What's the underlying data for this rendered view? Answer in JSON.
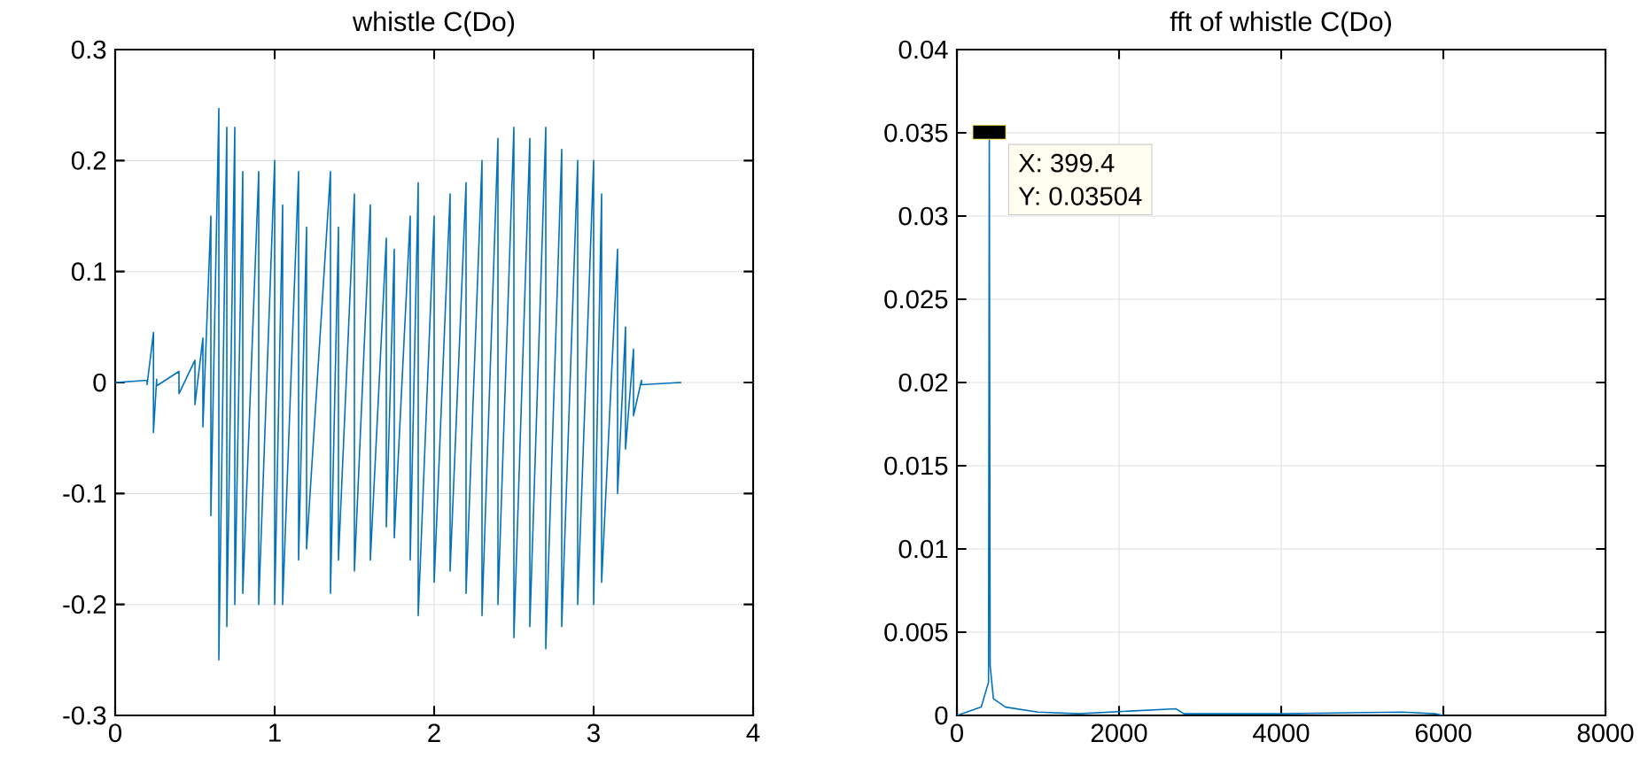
{
  "chart_data": [
    {
      "type": "line",
      "title": "whistle C(Do)",
      "color": "#0072bd",
      "grid": true,
      "xlim": [
        0,
        4
      ],
      "ylim": [
        -0.3,
        0.3
      ],
      "xticks": [
        0,
        1,
        2,
        3,
        4
      ],
      "yticks": [
        -0.3,
        -0.2,
        -0.1,
        0,
        0.1,
        0.2,
        0.3
      ],
      "x": [
        0,
        0.2,
        0.2,
        0.24,
        0.24,
        0.26,
        0.26,
        0.4,
        0.4,
        0.5,
        0.5,
        0.55,
        0.55,
        0.6,
        0.6,
        0.65,
        0.65,
        0.7,
        0.7,
        0.75,
        0.75,
        0.8,
        0.8,
        0.9,
        0.9,
        1.0,
        1.0,
        1.05,
        1.05,
        1.15,
        1.15,
        1.2,
        1.2,
        1.35,
        1.35,
        1.4,
        1.4,
        1.5,
        1.5,
        1.6,
        1.6,
        1.7,
        1.7,
        1.75,
        1.75,
        1.85,
        1.85,
        1.9,
        1.9,
        2.0,
        2.0,
        2.1,
        2.1,
        2.2,
        2.2,
        2.3,
        2.3,
        2.4,
        2.4,
        2.5,
        2.5,
        2.6,
        2.6,
        2.7,
        2.7,
        2.8,
        2.8,
        2.9,
        2.9,
        3.0,
        3.0,
        3.05,
        3.05,
        3.15,
        3.15,
        3.2,
        3.2,
        3.25,
        3.25,
        3.3,
        3.3,
        3.55
      ],
      "values": [
        0,
        0.002,
        -0.002,
        0.045,
        -0.045,
        0.003,
        -0.003,
        0.01,
        -0.01,
        0.02,
        -0.02,
        0.04,
        -0.04,
        0.15,
        -0.12,
        0.247,
        -0.25,
        0.23,
        -0.22,
        0.23,
        -0.2,
        0.19,
        -0.19,
        0.19,
        -0.2,
        0.2,
        -0.2,
        0.16,
        -0.2,
        0.19,
        -0.16,
        0.14,
        -0.15,
        0.19,
        -0.19,
        0.14,
        -0.16,
        0.17,
        -0.17,
        0.16,
        -0.16,
        0.13,
        -0.13,
        0.12,
        -0.14,
        0.15,
        -0.16,
        0.18,
        -0.21,
        0.15,
        -0.18,
        0.17,
        -0.17,
        0.18,
        -0.19,
        0.2,
        -0.21,
        0.22,
        -0.2,
        0.23,
        -0.23,
        0.22,
        -0.22,
        0.23,
        -0.24,
        0.21,
        -0.22,
        0.2,
        -0.2,
        0.2,
        -0.2,
        0.17,
        -0.18,
        0.12,
        -0.1,
        0.05,
        -0.06,
        0.03,
        -0.03,
        0.002,
        -0.002,
        0
      ]
    },
    {
      "type": "line",
      "title": "fft of whistle C(Do)",
      "color": "#0072bd",
      "grid": true,
      "xlim": [
        0,
        8000
      ],
      "ylim": [
        0,
        0.04
      ],
      "xticks": [
        0,
        2000,
        4000,
        6000,
        8000
      ],
      "yticks": [
        0,
        0.005,
        0.01,
        0.015,
        0.02,
        0.025,
        0.03,
        0.035,
        0.04
      ],
      "x": [
        0,
        300,
        390,
        399.4,
        410,
        450,
        600,
        1000,
        1500,
        2700,
        2800,
        4000,
        5500,
        5900,
        6000
      ],
      "values": [
        0,
        0.0005,
        0.002,
        0.03504,
        0.003,
        0.001,
        0.0005,
        0.0002,
        0.0001,
        0.0004,
        0.0001,
        0.0001,
        0.0002,
        0.0001,
        0
      ],
      "annotations": [
        {
          "text": "X: 399.4",
          "x": 399.4,
          "y": 0.03504
        },
        {
          "text": "Y: 0.03504",
          "x": 399.4,
          "y": 0.03504
        }
      ]
    }
  ]
}
